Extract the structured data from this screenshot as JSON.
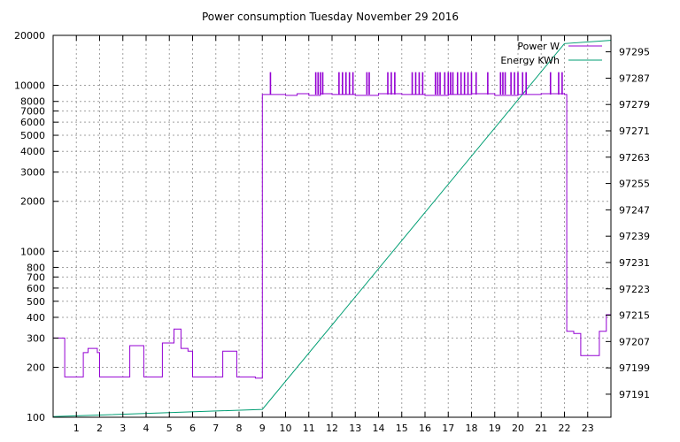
{
  "chart_data": {
    "type": "line",
    "title": "Power consumption Tuesday November 29 2016",
    "legend_position": "top-right",
    "grid": true,
    "x_axis": {
      "range": [
        0,
        24
      ],
      "ticks": [
        1,
        2,
        3,
        4,
        5,
        6,
        7,
        8,
        9,
        10,
        11,
        12,
        13,
        14,
        15,
        16,
        17,
        18,
        19,
        20,
        21,
        22,
        23
      ],
      "tick_labels": [
        "1",
        "2",
        "3",
        "4",
        "5",
        "6",
        "7",
        "8",
        "9",
        "10",
        "11",
        "12",
        "13",
        "14",
        "15",
        "16",
        "17",
        "18",
        "19",
        "20",
        "21",
        "22",
        "23"
      ]
    },
    "y_axis_left": {
      "scale": "log",
      "range": [
        100,
        20000
      ],
      "ticks": [
        100,
        200,
        300,
        400,
        500,
        600,
        700,
        800,
        1000,
        2000,
        3000,
        4000,
        5000,
        6000,
        7000,
        8000,
        10000,
        20000
      ],
      "tick_labels": [
        "100",
        "200",
        "300",
        "400",
        "500",
        "600",
        "700",
        "800",
        "1000",
        "2000",
        "3000",
        "4000",
        "5000",
        "6000",
        "7000",
        "8000",
        "10000",
        "20000"
      ]
    },
    "y_axis_right": {
      "scale": "linear",
      "range": [
        97184,
        97300
      ],
      "ticks": [
        97191,
        97199,
        97207,
        97215,
        97223,
        97231,
        97239,
        97247,
        97255,
        97263,
        97271,
        97279,
        97287,
        97295
      ],
      "tick_labels": [
        "97191",
        "97199",
        "97207",
        "97215",
        "97223",
        "97231",
        "97239",
        "97247",
        "97255",
        "97263",
        "97271",
        "97279",
        "97287",
        "97295"
      ]
    },
    "series": [
      {
        "name": "Power W",
        "color": "#9400d3",
        "axis": "left",
        "x": [
          0,
          0.5,
          0.5,
          1.3,
          1.3,
          1.5,
          1.5,
          1.9,
          1.9,
          2.0,
          2.0,
          3.3,
          3.3,
          3.9,
          3.9,
          4.7,
          4.7,
          5.2,
          5.2,
          5.5,
          5.5,
          5.8,
          5.8,
          6.0,
          6.0,
          7.3,
          7.3,
          7.9,
          7.9,
          8.7,
          8.7,
          9.0,
          9.0,
          9.05,
          9.05,
          10.0,
          10.0,
          10.5,
          10.5,
          11.0,
          11.0,
          11.5,
          11.5,
          12.0,
          12.0,
          13.0,
          13.0,
          14.0,
          14.0,
          15.0,
          15.0,
          16.0,
          16.0,
          17.0,
          17.0,
          18.0,
          18.0,
          19.0,
          19.0,
          20.0,
          20.0,
          21.0,
          21.0,
          22.0,
          22.0,
          22.1,
          22.1,
          22.4,
          22.4,
          22.7,
          22.7,
          23.5,
          23.5,
          23.8,
          23.8,
          24.0
        ],
        "y": [
          300,
          300,
          175,
          175,
          245,
          245,
          260,
          260,
          245,
          245,
          175,
          175,
          270,
          270,
          175,
          175,
          280,
          280,
          340,
          340,
          260,
          260,
          250,
          250,
          175,
          175,
          250,
          250,
          175,
          175,
          172,
          172,
          8800,
          8800,
          8800,
          8800,
          8700,
          8700,
          8900,
          8900,
          8700,
          8700,
          8900,
          8900,
          8800,
          8800,
          8700,
          8700,
          8900,
          8900,
          8800,
          8800,
          8700,
          8700,
          8800,
          8800,
          8900,
          8900,
          8700,
          8700,
          8800,
          8800,
          8900,
          8900,
          8800,
          8800,
          330,
          330,
          320,
          320,
          235,
          235,
          330,
          330,
          415,
          415
        ]
      },
      {
        "name": "Energy KWh",
        "color": "#009e73",
        "axis": "right",
        "x": [
          0,
          9.0,
          22.0,
          24.0
        ],
        "y": [
          97184.2,
          97186.4,
          97297.5,
          97298.5
        ]
      }
    ],
    "power_spikes": {
      "value": 12000,
      "baseline": 8800,
      "x": [
        9.35,
        11.3,
        11.4,
        11.5,
        11.6,
        12.3,
        12.45,
        12.6,
        12.75,
        12.9,
        13.5,
        13.6,
        14.4,
        14.55,
        14.7,
        15.45,
        15.6,
        15.75,
        15.9,
        16.45,
        16.55,
        16.65,
        16.85,
        17.0,
        17.1,
        17.2,
        17.4,
        17.55,
        17.7,
        17.85,
        18.0,
        18.2,
        18.7,
        19.25,
        19.35,
        19.45,
        19.7,
        19.85,
        20.0,
        20.2,
        20.35,
        21.4,
        21.75,
        21.9
      ]
    }
  }
}
